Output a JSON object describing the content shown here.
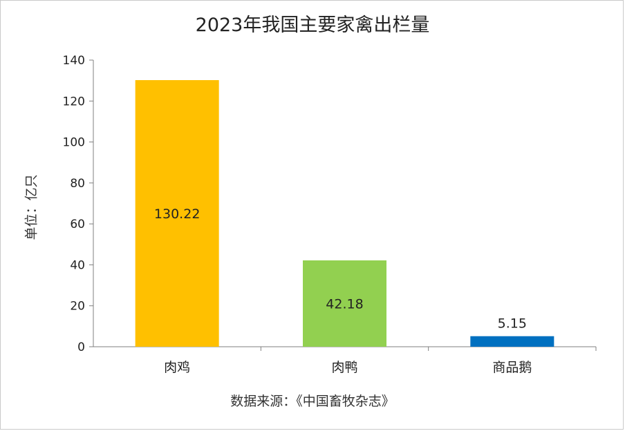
{
  "chart_data": {
    "type": "bar",
    "title": "2023年我国主要家禽出栏量",
    "ylabel": "单位：亿只",
    "xlabel": "",
    "source": "数据来源：《中国畜牧杂志》",
    "categories": [
      "肉鸡",
      "肉鸭",
      "商品鹅"
    ],
    "values": [
      130.22,
      42.18,
      5.15
    ],
    "value_labels": [
      "130.22",
      "42.18",
      "5.15"
    ],
    "colors": [
      "#FFC000",
      "#92D050",
      "#0070C0"
    ],
    "ylim": [
      0,
      140
    ],
    "yticks": [
      "0",
      "20",
      "40",
      "60",
      "80",
      "100",
      "120",
      "140"
    ],
    "grid": false,
    "legend": "none"
  }
}
